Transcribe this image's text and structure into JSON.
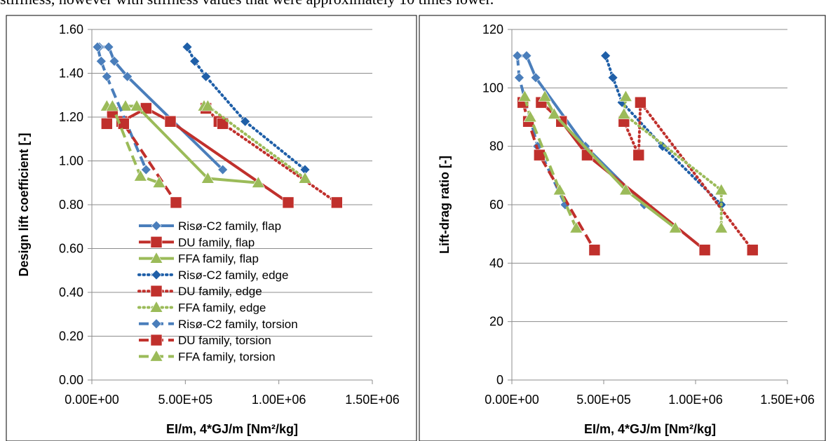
{
  "caption": "stiffness, however with stiffness values that were approximately 10 times lower.",
  "chart_data": [
    {
      "type": "line",
      "xlabel": "EI/m, 4*GJ/m [Nm²/kg]",
      "ylabel": "Design lift coefficient [-]",
      "xlim": [
        0,
        1500000
      ],
      "ylim": [
        0,
        1.6
      ],
      "xticks": [
        "0.00E+00",
        "5.00E+05",
        "1.00E+06",
        "1.50E+06"
      ],
      "yticks": [
        "0.00",
        "0.20",
        "0.40",
        "0.60",
        "0.80",
        "1.00",
        "1.20",
        "1.40",
        "1.60"
      ],
      "grid": "horizontal",
      "legend": "bottom-center",
      "series": [
        {
          "name": "Risø-C2 family, flap",
          "color": "#4a7ebb",
          "style": "solid",
          "marker": "diamond",
          "x": [
            40000,
            90000,
            120000,
            190000,
            700000
          ],
          "y": [
            1.52,
            1.52,
            1.455,
            1.385,
            0.96
          ]
        },
        {
          "name": "DU family, flap",
          "color": "#c0302c",
          "style": "solid",
          "marker": "square",
          "x": [
            160000,
            290000,
            420000,
            1050000
          ],
          "y": [
            1.18,
            1.24,
            1.18,
            0.81
          ]
        },
        {
          "name": "FFA family, flap",
          "color": "#9bbb59",
          "style": "solid",
          "marker": "triangle",
          "x": [
            180000,
            240000,
            620000,
            890000
          ],
          "y": [
            1.25,
            1.25,
            0.92,
            0.9
          ]
        },
        {
          "name": "Risø-C2 family, edge",
          "color": "#1f5fa8",
          "style": "dotted",
          "marker": "diamond",
          "x": [
            510000,
            550000,
            610000,
            820000,
            1140000
          ],
          "y": [
            1.52,
            1.455,
            1.385,
            1.18,
            0.96
          ]
        },
        {
          "name": "DU family, edge",
          "color": "#c0302c",
          "style": "dotted",
          "marker": "square",
          "x": [
            610000,
            680000,
            700000,
            1310000
          ],
          "y": [
            1.24,
            1.18,
            1.17,
            0.81
          ]
        },
        {
          "name": "FFA family, edge",
          "color": "#9bbb59",
          "style": "dotted",
          "marker": "triangle",
          "x": [
            600000,
            620000,
            1140000
          ],
          "y": [
            1.25,
            1.25,
            0.92
          ]
        },
        {
          "name": "Risø-C2 family, torsion",
          "color": "#4a7ebb",
          "style": "dashed",
          "marker": "diamond",
          "x": [
            30000,
            50000,
            80000,
            290000
          ],
          "y": [
            1.52,
            1.455,
            1.385,
            0.96
          ]
        },
        {
          "name": "DU family, torsion",
          "color": "#c0302c",
          "style": "dashed",
          "marker": "square",
          "x": [
            80000,
            110000,
            170000,
            450000
          ],
          "y": [
            1.17,
            1.22,
            1.17,
            0.81
          ]
        },
        {
          "name": "FFA family, torsion",
          "color": "#9bbb59",
          "style": "dashed",
          "marker": "triangle",
          "x": [
            80000,
            110000,
            260000,
            360000
          ],
          "y": [
            1.25,
            1.25,
            0.93,
            0.9
          ]
        }
      ]
    },
    {
      "type": "line",
      "xlabel": "EI/m, 4*GJ/m [Nm²/kg]",
      "ylabel": "Lift-drag ratio [-]",
      "xlim": [
        0,
        1500000
      ],
      "ylim": [
        0,
        120
      ],
      "xticks": [
        "0.00E+00",
        "5.00E+05",
        "1.00E+06",
        "1.50E+06"
      ],
      "yticks": [
        "0",
        "20",
        "40",
        "60",
        "80",
        "100",
        "120"
      ],
      "grid": "horizontal",
      "legend": "none",
      "series": [
        {
          "name": "Risø-C2 family, flap",
          "color": "#4a7ebb",
          "style": "solid",
          "marker": "diamond",
          "x": [
            30000,
            80000,
            130000,
            400000,
            720000
          ],
          "y": [
            111,
            111,
            103.5,
            80,
            60
          ]
        },
        {
          "name": "DU family, flap",
          "color": "#c0302c",
          "style": "solid",
          "marker": "square",
          "x": [
            160000,
            270000,
            410000,
            1050000
          ],
          "y": [
            95,
            88.5,
            77,
            44.5
          ]
        },
        {
          "name": "FFA family, flap",
          "color": "#9bbb59",
          "style": "solid",
          "marker": "triangle",
          "x": [
            180000,
            230000,
            620000,
            890000
          ],
          "y": [
            97,
            91,
            65,
            52
          ]
        },
        {
          "name": "Risø-C2 family, edge",
          "color": "#1f5fa8",
          "style": "dotted",
          "marker": "diamond",
          "x": [
            510000,
            550000,
            600000,
            820000,
            1140000
          ],
          "y": [
            111,
            103.5,
            95,
            80,
            60
          ]
        },
        {
          "name": "DU family, edge",
          "color": "#c0302c",
          "style": "dotted",
          "marker": "square",
          "x": [
            610000,
            690000,
            700000,
            1310000
          ],
          "y": [
            88.5,
            77,
            95,
            44.5
          ]
        },
        {
          "name": "FFA family, edge",
          "color": "#9bbb59",
          "style": "dotted",
          "marker": "triangle",
          "x": [
            620000,
            610000,
            1140000,
            1140000
          ],
          "y": [
            97,
            91,
            65,
            52
          ]
        },
        {
          "name": "Risø-C2 family, torsion",
          "color": "#4a7ebb",
          "style": "dashed",
          "marker": "diamond",
          "x": [
            30000,
            40000,
            140000,
            290000
          ],
          "y": [
            111,
            103.5,
            80,
            60
          ]
        },
        {
          "name": "DU family, torsion",
          "color": "#c0302c",
          "style": "dashed",
          "marker": "square",
          "x": [
            60000,
            90000,
            150000,
            450000
          ],
          "y": [
            95,
            88.5,
            77,
            44.5
          ]
        },
        {
          "name": "FFA family, torsion",
          "color": "#9bbb59",
          "style": "dashed",
          "marker": "triangle",
          "x": [
            70000,
            100000,
            260000,
            350000
          ],
          "y": [
            97,
            90,
            65,
            52
          ]
        }
      ]
    }
  ]
}
